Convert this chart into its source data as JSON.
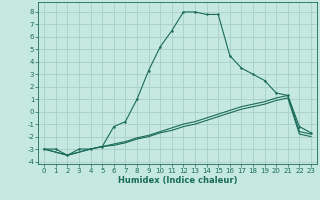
{
  "xlabel": "Humidex (Indice chaleur)",
  "background_color": "#c5e8e0",
  "grid_color": "#a8cec8",
  "line_color": "#1a6b5a",
  "xlim": [
    -0.5,
    23.5
  ],
  "ylim": [
    -4.2,
    8.8
  ],
  "yticks": [
    -4,
    -3,
    -2,
    -1,
    0,
    1,
    2,
    3,
    4,
    5,
    6,
    7,
    8
  ],
  "xticks": [
    0,
    1,
    2,
    3,
    4,
    5,
    6,
    7,
    8,
    9,
    10,
    11,
    12,
    13,
    14,
    15,
    16,
    17,
    18,
    19,
    20,
    21,
    22,
    23
  ],
  "curve1_x": [
    0,
    1,
    2,
    3,
    4,
    5,
    6,
    7,
    8,
    9,
    10,
    11,
    12,
    13,
    14,
    15,
    16,
    17,
    18,
    19,
    20,
    21,
    22,
    23
  ],
  "curve1_y": [
    -3,
    -3,
    -3.5,
    -3,
    -3,
    -2.8,
    -1.2,
    -0.8,
    1.0,
    3.3,
    5.2,
    6.5,
    8.0,
    8.0,
    7.8,
    7.8,
    4.5,
    3.5,
    3.0,
    2.5,
    1.5,
    1.3,
    -1.2,
    -1.7
  ],
  "curve2_x": [
    0,
    2,
    4,
    5,
    6,
    7,
    8,
    9,
    10,
    11,
    12,
    13,
    14,
    15,
    16,
    17,
    18,
    19,
    20,
    21,
    22,
    23
  ],
  "curve2_y": [
    -3,
    -3.5,
    -3,
    -2.8,
    -2.6,
    -2.4,
    -2.1,
    -1.9,
    -1.6,
    -1.3,
    -1.0,
    -0.8,
    -0.5,
    -0.2,
    0.1,
    0.4,
    0.6,
    0.8,
    1.1,
    1.3,
    -1.6,
    -1.8
  ],
  "curve3_x": [
    0,
    2,
    4,
    5,
    6,
    7,
    8,
    9,
    10,
    11,
    12,
    13,
    14,
    15,
    16,
    17,
    18,
    19,
    20,
    21,
    22,
    23
  ],
  "curve3_y": [
    -3,
    -3.5,
    -3,
    -2.8,
    -2.7,
    -2.5,
    -2.2,
    -2.0,
    -1.7,
    -1.5,
    -1.2,
    -1.0,
    -0.7,
    -0.4,
    -0.1,
    0.2,
    0.4,
    0.6,
    0.9,
    1.1,
    -1.8,
    -2.0
  ],
  "tick_fontsize": 5.0,
  "xlabel_fontsize": 6.0
}
